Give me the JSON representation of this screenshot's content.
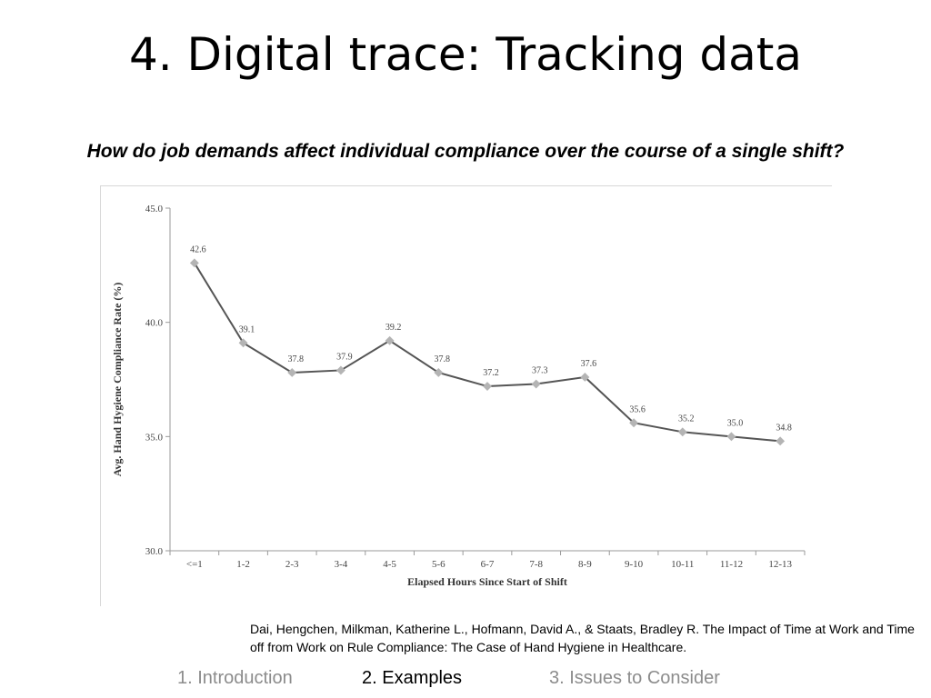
{
  "slide": {
    "title": "4. Digital trace: Tracking data",
    "question": "How do job demands affect individual compliance over the course of a single shift?"
  },
  "chart_data": {
    "type": "line",
    "categories": [
      "<=1",
      "1-2",
      "2-3",
      "3-4",
      "4-5",
      "5-6",
      "6-7",
      "7-8",
      "8-9",
      "9-10",
      "10-11",
      "11-12",
      "12-13"
    ],
    "series": [
      {
        "values": [
          42.6,
          39.1,
          37.8,
          37.9,
          39.2,
          37.8,
          37.2,
          37.3,
          37.6,
          35.6,
          35.2,
          35.0,
          34.8
        ]
      }
    ],
    "data_labels": [
      "42.6",
      "39.1",
      "37.8",
      "37.9",
      "39.2",
      "37.8",
      "37.2",
      "37.3",
      "37.6",
      "35.6",
      "35.2",
      "35.0",
      "34.8"
    ],
    "y_ticks": [
      "30.0",
      "35.0",
      "40.0",
      "45.0"
    ],
    "title": "",
    "xlabel": "Elapsed Hours Since Start of Shift",
    "ylabel": "Avg. Hand Hygiene Compliance Rate (%)",
    "ylim": [
      30,
      45
    ],
    "grid": false,
    "legend": "none",
    "line_color": "#555555",
    "marker_color": "#b4b4b4"
  },
  "citation": "Dai, Hengchen, Milkman, Katherine L., Hofmann, David A., & Staats, Bradley R. The Impact of Time at Work and Time off from Work on Rule Compliance: The Case of Hand Hygiene in Healthcare.",
  "nav": {
    "items": [
      "1. Introduction",
      "2. Examples",
      "3. Issues to Consider"
    ]
  }
}
